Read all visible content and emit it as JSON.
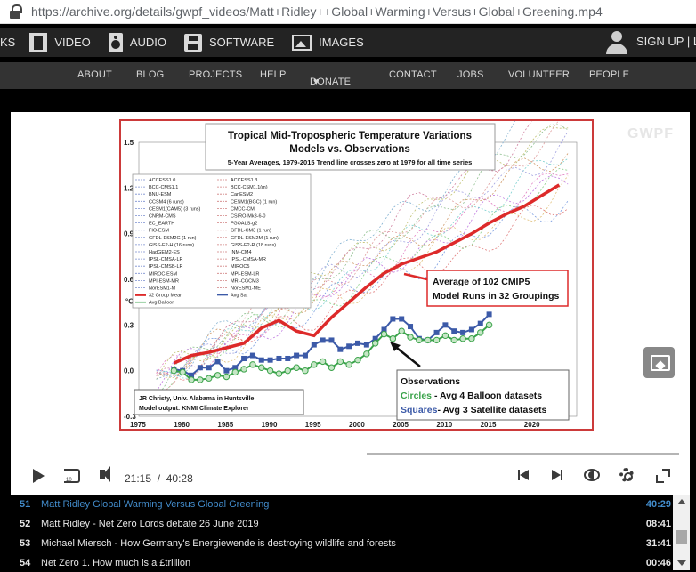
{
  "browser": {
    "url": "https://archive.org/details/gwpf_videos/Matt+Ridley++Global+Warming+Versus+Global+Greening.mp4"
  },
  "topnav": {
    "items": [
      {
        "label": "KS",
        "icon": "none"
      },
      {
        "label": "VIDEO",
        "icon": "film-icon"
      },
      {
        "label": "AUDIO",
        "icon": "speaker-icon"
      },
      {
        "label": "SOFTWARE",
        "icon": "floppy-disk-icon"
      },
      {
        "label": "IMAGES",
        "icon": "image-icon"
      }
    ],
    "signup": "SIGN UP | L"
  },
  "subnav": {
    "items": [
      "ABOUT",
      "BLOG",
      "PROJECTS",
      "HELP",
      "DONATE",
      "CONTACT",
      "JOBS",
      "VOLUNTEER",
      "PEOPLE"
    ]
  },
  "player": {
    "watermark": "GWPF",
    "current_time": "21:15",
    "separator": "/",
    "duration": "40:28",
    "progress": 0.525
  },
  "chart_data": {
    "type": "line",
    "title": "Tropical Mid-Tropospheric Temperature Variations",
    "subtitle": "Models vs. Observations",
    "note": "5-Year Averages, 1979-2015 Trend line crosses zero at 1979 for all time series",
    "ylabel": "°C",
    "xlim": [
      1975,
      2025
    ],
    "ylim": [
      -0.3,
      1.5
    ],
    "yticks": [
      "1.5",
      "1.2",
      "0.9",
      "0.6",
      "0.3",
      "0.0",
      "-0.3"
    ],
    "xticks": [
      "1975",
      "1980",
      "1985",
      "1990",
      "1995",
      "2000",
      "2005",
      "2010",
      "2015",
      "2020"
    ],
    "legend_left": [
      "ACCESS1.0",
      "BCC-CMS1.1",
      "BNU-ESM",
      "CCSM4 (6 runs)",
      "CESM1(CAM5) (3 runs)",
      "CNRM-CMS",
      "EC_EARTH",
      "FIO-ESM",
      "GFDL-ESM2G (1 run)",
      "GISS-E2-H (16 runs)",
      "HadGEM2-ES",
      "IPSL-CMSA-LR",
      "IPSL-CMSB-LR",
      "MIROC-ESM",
      "MPI-ESM-MR",
      "NorESM1-M",
      "32 Group Mean",
      "Avg Balloon"
    ],
    "legend_right": [
      "ACCESS1.3",
      "BCC-CSM1.1(m)",
      "CanESM2",
      "CESM1(BGC) (1 run)",
      "CMCC-CM",
      "CSIRO-Mk3-6-0",
      "FGOALS-g2",
      "GFDL-CM3 (1 run)",
      "GFDL-ESM2M (1 run)",
      "GISS-E2-R (18 runs)",
      "INM-CM4",
      "IPSL-CMSA-MR",
      "MIROC5",
      "MPI-ESM-LR",
      "MRI-CGCM3",
      "NorESM1-ME",
      "Avg Sat"
    ],
    "annotation_model": [
      "Average of 102 CMIP5",
      "Model Runs in 32 Groupings"
    ],
    "annotation_obs": {
      "heading": "Observations",
      "circles_word": "Circles",
      "circles_rest": " - Avg 4 Balloon datasets",
      "squares_word": "Squares",
      "squares_rest": "- Avg 3 Satellite datasets"
    },
    "credit": [
      "JR Christy, Univ. Alabama in Huntsville",
      "Model output: KNMI Climate Explorer"
    ],
    "series": [
      {
        "name": "32 Group Mean",
        "color": "#dd2a2a",
        "x": [
          1979,
          1981,
          1983,
          1985,
          1987,
          1989,
          1991,
          1993,
          1995,
          1997,
          1999,
          2001,
          2003,
          2005,
          2007,
          2009,
          2011,
          2013,
          2015,
          2017,
          2019,
          2021,
          2023
        ],
        "y": [
          0.05,
          0.1,
          0.12,
          0.15,
          0.18,
          0.28,
          0.33,
          0.26,
          0.23,
          0.35,
          0.45,
          0.55,
          0.64,
          0.7,
          0.74,
          0.78,
          0.84,
          0.9,
          0.97,
          1.03,
          1.08,
          1.15,
          1.22
        ]
      },
      {
        "name": "Avg Sat",
        "color": "#3c5aa8",
        "x": [
          1979,
          1980,
          1981,
          1982,
          1983,
          1984,
          1985,
          1986,
          1987,
          1988,
          1989,
          1990,
          1991,
          1992,
          1993,
          1994,
          1995,
          1996,
          1997,
          1998,
          1999,
          2000,
          2001,
          2002,
          2003,
          2004,
          2005,
          2006,
          2007,
          2008,
          2009,
          2010,
          2011,
          2012,
          2013,
          2014,
          2015
        ],
        "y": [
          0.01,
          0.0,
          -0.03,
          0.02,
          0.02,
          0.06,
          0.0,
          0.02,
          0.08,
          0.1,
          0.07,
          0.07,
          0.08,
          0.08,
          0.1,
          0.1,
          0.17,
          0.2,
          0.2,
          0.14,
          0.16,
          0.18,
          0.17,
          0.21,
          0.27,
          0.34,
          0.34,
          0.29,
          0.21,
          0.2,
          0.25,
          0.3,
          0.26,
          0.25,
          0.27,
          0.31,
          0.37
        ]
      },
      {
        "name": "Avg Balloon",
        "color": "#3aa34a",
        "x": [
          1979,
          1980,
          1981,
          1982,
          1983,
          1984,
          1985,
          1986,
          1987,
          1988,
          1989,
          1990,
          1991,
          1992,
          1993,
          1994,
          1995,
          1996,
          1997,
          1998,
          1999,
          2000,
          2001,
          2002,
          2003,
          2004,
          2005,
          2006,
          2007,
          2008,
          2009,
          2010,
          2011,
          2012,
          2013,
          2014,
          2015
        ],
        "y": [
          0.0,
          -0.01,
          -0.06,
          -0.06,
          -0.05,
          -0.03,
          -0.04,
          -0.01,
          0.01,
          0.04,
          0.02,
          0.0,
          -0.02,
          0.0,
          0.02,
          0.0,
          0.04,
          0.06,
          0.02,
          0.06,
          0.04,
          0.07,
          0.11,
          0.18,
          0.24,
          0.21,
          0.26,
          0.22,
          0.2,
          0.2,
          0.2,
          0.23,
          0.2,
          0.21,
          0.21,
          0.25,
          0.3
        ]
      }
    ],
    "model_spaghetti_count": 14
  },
  "playlist": [
    {
      "num": "51",
      "title": "Matt Ridley Global Warming Versus Global Greening",
      "duration": "40:29",
      "active": true
    },
    {
      "num": "52",
      "title": "Matt Ridley - Net Zero Lords debate 26 June 2019",
      "duration": "08:41",
      "active": false
    },
    {
      "num": "53",
      "title": "Michael Miersch - How Germany's Energiewende is destroying wildlife and forests",
      "duration": "31:41",
      "active": false
    },
    {
      "num": "54",
      "title": "Net Zero 1. How much is a £trillion",
      "duration": "00:46",
      "active": false
    }
  ]
}
